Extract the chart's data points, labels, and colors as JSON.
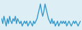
{
  "values": [
    0,
    -2,
    1,
    -1,
    -3,
    0,
    -2,
    1,
    -1,
    -2,
    0,
    -1,
    1,
    -2,
    0,
    -1,
    -2,
    -1,
    -3,
    -2,
    -1,
    -2,
    -1,
    -3,
    -2,
    -1,
    -2,
    -3,
    -1,
    -2,
    -1,
    0,
    2,
    4,
    6,
    3,
    1,
    3,
    6,
    4,
    2,
    0,
    -1,
    -2,
    0,
    -2,
    -1,
    -3,
    -2,
    -1,
    -3,
    -2,
    -1,
    -2,
    -1,
    -2,
    -1,
    -3,
    -2,
    -1,
    -2,
    -3,
    -2,
    -1,
    -2,
    -1,
    -2,
    -3,
    -2,
    -1
  ],
  "line_color": "#3399cc",
  "bg_color": "#ddeef5",
  "line_width": 1.0
}
